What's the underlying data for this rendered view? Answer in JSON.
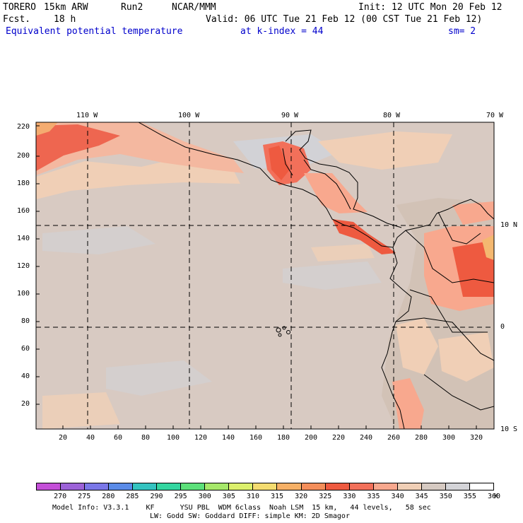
{
  "header": {
    "model": "TORERO",
    "resolution": "15km ARW",
    "run": "Run2",
    "org": "NCAR/MMM",
    "init": "Init: 12 UTC Mon 20 Feb 12",
    "fcst_label": "Fcst.",
    "fcst_value": "18 h",
    "valid": "Valid: 06 UTC Tue 21 Feb 12 (00 CST Tue 21 Feb 12)",
    "field": "Equivalent potential temperature",
    "level": "at k-index = 44",
    "smoothing": "sm= 2"
  },
  "map": {
    "lon_labels": [
      "110 W",
      "100 W",
      "90 W",
      "80 W",
      "70 W"
    ],
    "lat_labels": [
      "10 N",
      "0",
      "10 S"
    ],
    "y_ticks": [
      "20",
      "40",
      "60",
      "80",
      "100",
      "120",
      "140",
      "160",
      "180",
      "200",
      "220"
    ],
    "x_ticks": [
      "20",
      "40",
      "60",
      "80",
      "100",
      "120",
      "140",
      "160",
      "180",
      "200",
      "220",
      "240",
      "260",
      "280",
      "300",
      "320"
    ]
  },
  "colorbar": {
    "unit": "K",
    "labels": [
      "270",
      "275",
      "280",
      "285",
      "290",
      "295",
      "300",
      "305",
      "310",
      "315",
      "320",
      "325",
      "330",
      "335",
      "340",
      "345",
      "350",
      "355",
      "360"
    ],
    "colors": [
      "#c44fd8",
      "#9c62d8",
      "#7a77e8",
      "#5a8be8",
      "#34c3c0",
      "#33d6a0",
      "#5ce07a",
      "#a6e86a",
      "#dcf06c",
      "#f4dc70",
      "#f6b066",
      "#f48e5a",
      "#ee5a40",
      "#f2705a",
      "#f8a88e",
      "#f0cfb6",
      "#d6cac2",
      "#d4d4d8",
      "#ffffff"
    ]
  },
  "footer": {
    "line1": "Model Info: V3.3.1    KF      YSU PBL  WDM 6class  Noah LSM  15 km,   44 levels,   58 sec",
    "line2": "LW: Godd SW: Goddard DIFF: simple KM: 2D Smagor"
  }
}
